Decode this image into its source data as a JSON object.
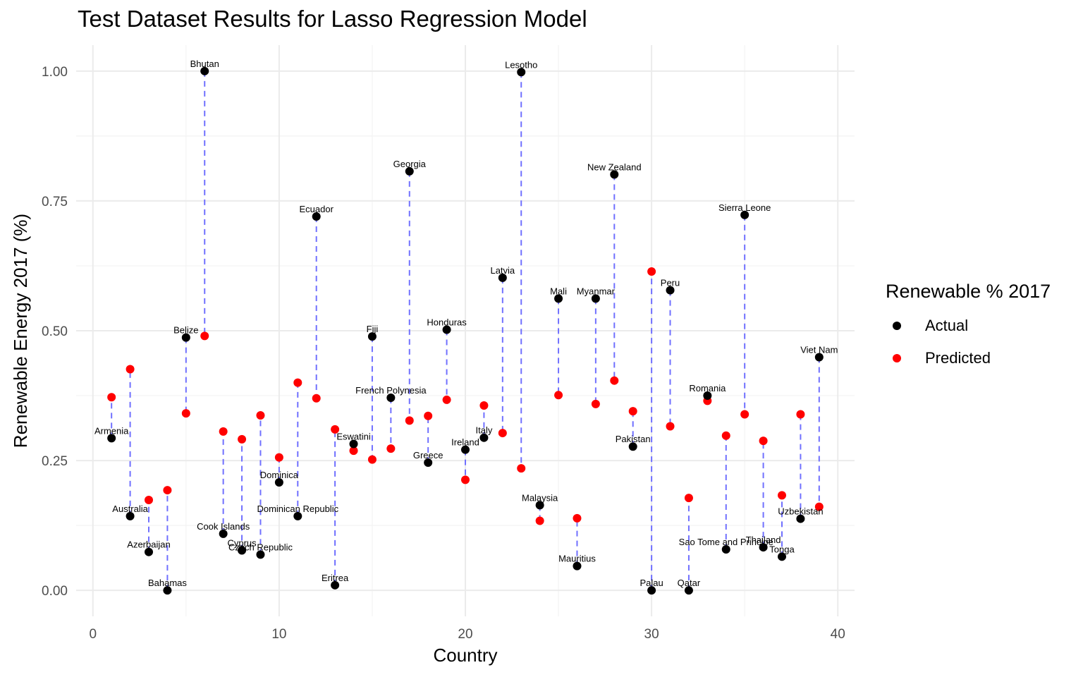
{
  "chart_data": {
    "type": "scatter",
    "title": "Test Dataset Results for Lasso Regression Model",
    "xlabel": "Country",
    "ylabel": "Renewable Energy 2017 (%)",
    "xlim": [
      -0.9,
      40.9
    ],
    "ylim": [
      -0.05,
      1.05
    ],
    "x_ticks": [
      0,
      10,
      20,
      30,
      40
    ],
    "x_tick_labels": [
      "0",
      "10",
      "20",
      "30",
      "40"
    ],
    "y_ticks": [
      0,
      0.25,
      0.5,
      0.75,
      1.0
    ],
    "y_tick_labels": [
      "0.00",
      "0.25",
      "0.50",
      "0.75",
      "1.00"
    ],
    "grid": true,
    "legend": {
      "title": "Renewable % 2017",
      "position": "right",
      "entries": [
        {
          "label": "Actual",
          "color": "#000000"
        },
        {
          "label": "Predicted",
          "color": "#ff0000"
        }
      ]
    },
    "points": [
      {
        "x": 1,
        "country": "Armenia",
        "actual": 0.293,
        "predicted": 0.372
      },
      {
        "x": 2,
        "country": "Australia",
        "actual": 0.143,
        "predicted": 0.426
      },
      {
        "x": 3,
        "country": "Azerbaijan",
        "actual": 0.074,
        "predicted": 0.174
      },
      {
        "x": 4,
        "country": "Bahamas",
        "actual": 0.0,
        "predicted": 0.193
      },
      {
        "x": 5,
        "country": "Belize",
        "actual": 0.487,
        "predicted": 0.341
      },
      {
        "x": 6,
        "country": "Bhutan",
        "actual": 1.0,
        "predicted": 0.49
      },
      {
        "x": 7,
        "country": "Cook Islands",
        "actual": 0.109,
        "predicted": 0.306
      },
      {
        "x": 8,
        "country": "Cyprus",
        "actual": 0.077,
        "predicted": 0.291
      },
      {
        "x": 9,
        "country": "Czech Republic",
        "actual": 0.069,
        "predicted": 0.337
      },
      {
        "x": 10,
        "country": "Dominica",
        "actual": 0.208,
        "predicted": 0.256
      },
      {
        "x": 11,
        "country": "Dominican Republic",
        "actual": 0.143,
        "predicted": 0.4
      },
      {
        "x": 12,
        "country": "Ecuador",
        "actual": 0.72,
        "predicted": 0.37
      },
      {
        "x": 13,
        "country": "Eritrea",
        "actual": 0.01,
        "predicted": 0.31
      },
      {
        "x": 14,
        "country": "Eswatini",
        "actual": 0.282,
        "predicted": 0.269
      },
      {
        "x": 15,
        "country": "Fiji",
        "actual": 0.489,
        "predicted": 0.252
      },
      {
        "x": 16,
        "country": "French Polynesia",
        "actual": 0.371,
        "predicted": 0.273
      },
      {
        "x": 17,
        "country": "Georgia",
        "actual": 0.807,
        "predicted": 0.327
      },
      {
        "x": 18,
        "country": "Greece",
        "actual": 0.246,
        "predicted": 0.336
      },
      {
        "x": 19,
        "country": "Honduras",
        "actual": 0.502,
        "predicted": 0.367
      },
      {
        "x": 20,
        "country": "Ireland",
        "actual": 0.271,
        "predicted": 0.213
      },
      {
        "x": 21,
        "country": "Italy",
        "actual": 0.294,
        "predicted": 0.356
      },
      {
        "x": 22,
        "country": "Latvia",
        "actual": 0.602,
        "predicted": 0.303
      },
      {
        "x": 23,
        "country": "Lesotho",
        "actual": 0.998,
        "predicted": 0.235
      },
      {
        "x": 24,
        "country": "Malaysia",
        "actual": 0.164,
        "predicted": 0.134
      },
      {
        "x": 25,
        "country": "Mali",
        "actual": 0.562,
        "predicted": 0.376
      },
      {
        "x": 26,
        "country": "Mauritius",
        "actual": 0.047,
        "predicted": 0.139
      },
      {
        "x": 27,
        "country": "Myanmar",
        "actual": 0.562,
        "predicted": 0.359
      },
      {
        "x": 28,
        "country": "New Zealand",
        "actual": 0.801,
        "predicted": 0.404
      },
      {
        "x": 29,
        "country": "Pakistan",
        "actual": 0.277,
        "predicted": 0.345
      },
      {
        "x": 30,
        "country": "Palau",
        "actual": 0.0,
        "predicted": 0.614
      },
      {
        "x": 31,
        "country": "Peru",
        "actual": 0.578,
        "predicted": 0.316
      },
      {
        "x": 32,
        "country": "Qatar",
        "actual": 0.0,
        "predicted": 0.178
      },
      {
        "x": 33,
        "country": "Romania",
        "actual": 0.375,
        "predicted": 0.365
      },
      {
        "x": 34,
        "country": "Sao Tome and Principe",
        "actual": 0.079,
        "predicted": 0.298
      },
      {
        "x": 35,
        "country": "Sierra Leone",
        "actual": 0.723,
        "predicted": 0.339
      },
      {
        "x": 36,
        "country": "Thailand",
        "actual": 0.083,
        "predicted": 0.288
      },
      {
        "x": 37,
        "country": "Tonga",
        "actual": 0.065,
        "predicted": 0.183
      },
      {
        "x": 38,
        "country": "Uzbekistan",
        "actual": 0.138,
        "predicted": 0.339
      },
      {
        "x": 39,
        "country": "Viet Nam",
        "actual": 0.449,
        "predicted": 0.161
      }
    ]
  }
}
